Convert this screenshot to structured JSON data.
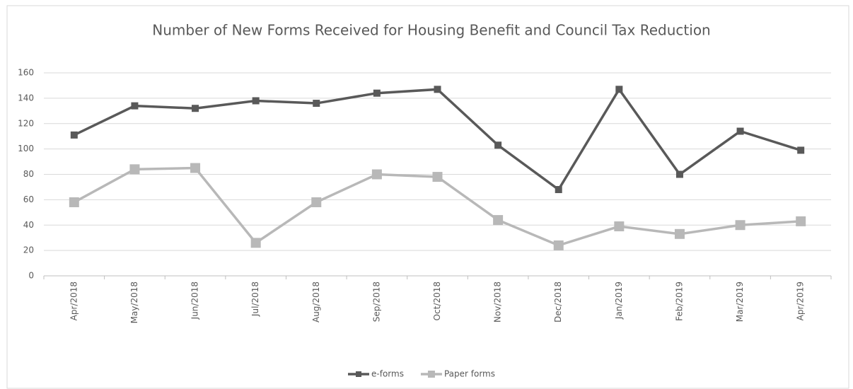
{
  "chart_data": {
    "type": "line",
    "title": "Number of New Forms Received for Housing Benefit and Council Tax Reduction",
    "categories": [
      "Apr/2018",
      "May/2018",
      "Jun/2018",
      "Jul/2018",
      "Aug/2018",
      "Sep/2018",
      "Oct/2018",
      "Nov/2018",
      "Dec/2018",
      "Jan/2019",
      "Feb/2019",
      "Mar/2019",
      "Apr/2019"
    ],
    "series": [
      {
        "name": "e-forms",
        "color": "#595959",
        "values": [
          111,
          134,
          132,
          138,
          136,
          144,
          147,
          103,
          68,
          147,
          80,
          114,
          99
        ]
      },
      {
        "name": "Paper forms",
        "color": "#b8b8b8",
        "values": [
          58,
          84,
          85,
          26,
          58,
          80,
          78,
          44,
          24,
          39,
          33,
          40,
          43
        ]
      }
    ],
    "ylim": [
      0,
      160
    ],
    "yticks": [
      0,
      20,
      40,
      60,
      80,
      100,
      120,
      140,
      160
    ],
    "grid": true,
    "legend": "bottom"
  }
}
